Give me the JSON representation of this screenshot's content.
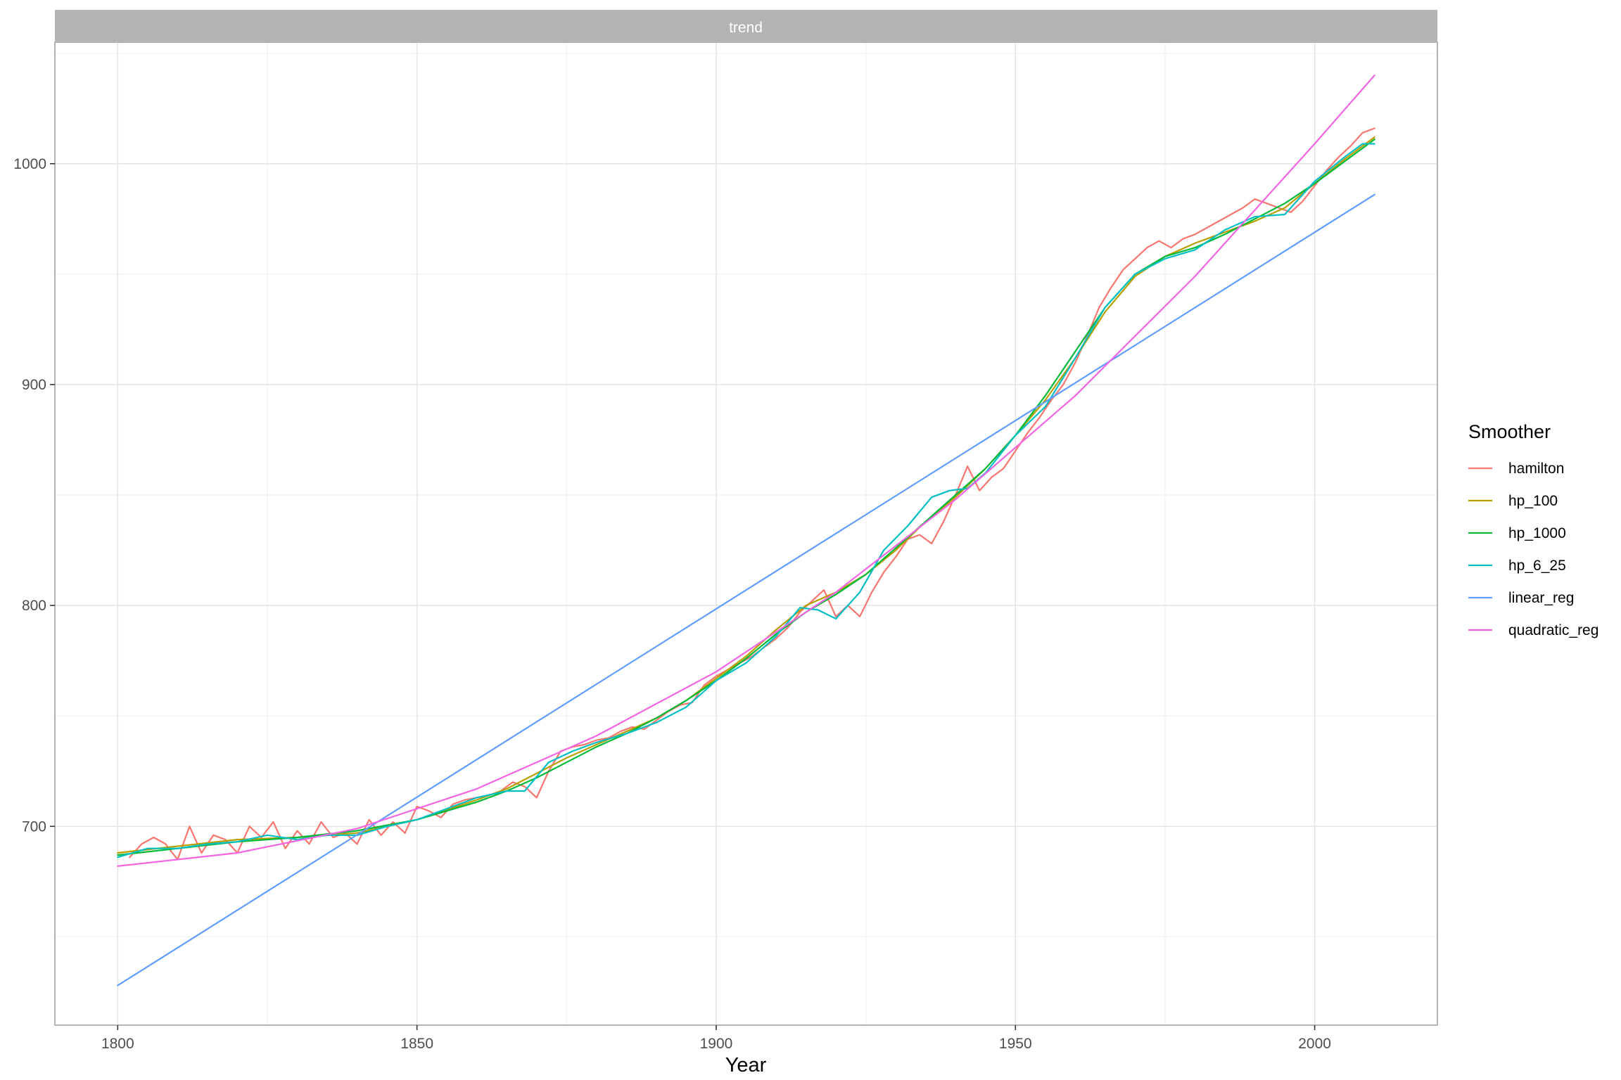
{
  "chart_data": {
    "type": "line",
    "facet_title": "trend",
    "xlabel": "Year",
    "ylabel": "",
    "xlim": [
      1789.5,
      2020.5
    ],
    "ylim": [
      610,
      1055
    ],
    "x_ticks": [
      1800,
      1850,
      1900,
      1950,
      2000
    ],
    "y_ticks": [
      700,
      800,
      900,
      1000
    ],
    "grid": true,
    "legend": {
      "title": "Smoother",
      "position": "right",
      "entries": [
        "hamilton",
        "hp_100",
        "hp_1000",
        "hp_6_25",
        "linear_reg",
        "quadratic_reg"
      ]
    },
    "series": [
      {
        "name": "hamilton",
        "color": "#F8766D",
        "x": [
          1802,
          1804,
          1806,
          1808,
          1810,
          1812,
          1814,
          1816,
          1818,
          1820,
          1822,
          1824,
          1826,
          1828,
          1830,
          1832,
          1834,
          1836,
          1838,
          1840,
          1842,
          1844,
          1846,
          1848,
          1850,
          1852,
          1854,
          1856,
          1858,
          1860,
          1862,
          1864,
          1866,
          1868,
          1870,
          1872,
          1874,
          1876,
          1878,
          1880,
          1882,
          1884,
          1886,
          1888,
          1890,
          1892,
          1894,
          1896,
          1898,
          1900,
          1902,
          1904,
          1906,
          1908,
          1910,
          1912,
          1914,
          1916,
          1918,
          1920,
          1922,
          1924,
          1926,
          1928,
          1930,
          1932,
          1934,
          1936,
          1938,
          1940,
          1942,
          1944,
          1946,
          1948,
          1950,
          1952,
          1954,
          1956,
          1958,
          1960,
          1962,
          1964,
          1966,
          1968,
          1970,
          1972,
          1974,
          1976,
          1978,
          1980,
          1982,
          1984,
          1986,
          1988,
          1990,
          1992,
          1994,
          1996,
          1998,
          2000,
          2002,
          2004,
          2006,
          2008,
          2010
        ],
        "y": [
          686,
          692,
          695,
          692,
          685,
          700,
          688,
          696,
          694,
          688,
          700,
          695,
          702,
          690,
          698,
          692,
          702,
          695,
          697,
          692,
          703,
          696,
          702,
          697,
          709,
          707,
          704,
          710,
          712,
          713,
          714,
          716,
          720,
          718,
          713,
          725,
          734,
          736,
          737,
          739,
          740,
          743,
          745,
          744,
          748,
          752,
          755,
          756,
          764,
          768,
          771,
          774,
          777,
          781,
          785,
          790,
          797,
          802,
          807,
          795,
          800,
          795,
          806,
          815,
          822,
          830,
          832,
          828,
          838,
          850,
          863,
          852,
          858,
          862,
          870,
          878,
          885,
          893,
          900,
          910,
          922,
          935,
          944,
          952,
          957,
          962,
          965,
          962,
          966,
          968,
          971,
          974,
          977,
          980,
          984,
          982,
          980,
          978,
          983,
          990,
          997,
          1003,
          1008,
          1014,
          1016
        ]
      },
      {
        "name": "hp_100",
        "color": "#B79F00",
        "x": [
          1800,
          1810,
          1820,
          1830,
          1840,
          1850,
          1860,
          1865,
          1870,
          1875,
          1880,
          1885,
          1890,
          1895,
          1900,
          1905,
          1910,
          1915,
          1920,
          1925,
          1930,
          1935,
          1940,
          1945,
          1950,
          1955,
          1960,
          1965,
          1970,
          1975,
          1980,
          1985,
          1990,
          1995,
          2000,
          2005,
          2010
        ],
        "y": [
          688,
          691,
          694,
          695,
          697,
          703,
          712,
          717,
          724,
          731,
          737,
          743,
          749,
          757,
          767,
          777,
          789,
          800,
          806,
          814,
          825,
          838,
          849,
          862,
          877,
          893,
          912,
          933,
          949,
          958,
          964,
          969,
          974,
          980,
          991,
          1002,
          1012
        ]
      },
      {
        "name": "hp_1000",
        "color": "#00BA38",
        "x": [
          1800,
          1810,
          1820,
          1830,
          1840,
          1850,
          1860,
          1865,
          1870,
          1875,
          1880,
          1885,
          1890,
          1895,
          1900,
          1905,
          1910,
          1915,
          1920,
          1925,
          1930,
          1935,
          1940,
          1945,
          1950,
          1955,
          1960,
          1965,
          1970,
          1975,
          1980,
          1985,
          1990,
          1995,
          2000,
          2005,
          2010
        ],
        "y": [
          687,
          690,
          693,
          695,
          698,
          703,
          711,
          716,
          722,
          729,
          736,
          742,
          749,
          757,
          766,
          776,
          787,
          797,
          805,
          814,
          826,
          838,
          850,
          862,
          877,
          895,
          915,
          935,
          950,
          958,
          962,
          968,
          975,
          982,
          991,
          1001,
          1011
        ]
      },
      {
        "name": "hp_6_25",
        "color": "#00BFC4",
        "x": [
          1800,
          1805,
          1810,
          1815,
          1820,
          1825,
          1830,
          1835,
          1840,
          1845,
          1850,
          1855,
          1860,
          1865,
          1868,
          1872,
          1876,
          1880,
          1885,
          1890,
          1895,
          1900,
          1905,
          1910,
          1914,
          1917,
          1920,
          1924,
          1928,
          1932,
          1936,
          1939,
          1942,
          1945,
          1950,
          1955,
          1960,
          1965,
          1970,
          1975,
          1980,
          1985,
          1990,
          1995,
          2000,
          2005,
          2008,
          2010
        ],
        "y": [
          686,
          690,
          690,
          692,
          693,
          696,
          694,
          696,
          696,
          700,
          703,
          708,
          713,
          716,
          716,
          729,
          734,
          738,
          742,
          747,
          754,
          766,
          774,
          786,
          799,
          798,
          794,
          806,
          825,
          836,
          849,
          852,
          853,
          860,
          877,
          890,
          912,
          935,
          950,
          957,
          961,
          970,
          976,
          977,
          992,
          1003,
          1009,
          1009
        ]
      },
      {
        "name": "linear_reg",
        "color": "#619CFF",
        "x": [
          1800,
          2010
        ],
        "y": [
          628,
          986
        ]
      },
      {
        "name": "quadratic_reg",
        "color": "#F564E3",
        "x": [
          1800,
          1820,
          1840,
          1860,
          1880,
          1900,
          1920,
          1940,
          1960,
          1980,
          2000,
          2010
        ],
        "y": [
          682,
          688,
          699,
          717,
          741,
          770,
          806,
          848,
          895,
          949,
          1009,
          1040
        ]
      }
    ]
  }
}
